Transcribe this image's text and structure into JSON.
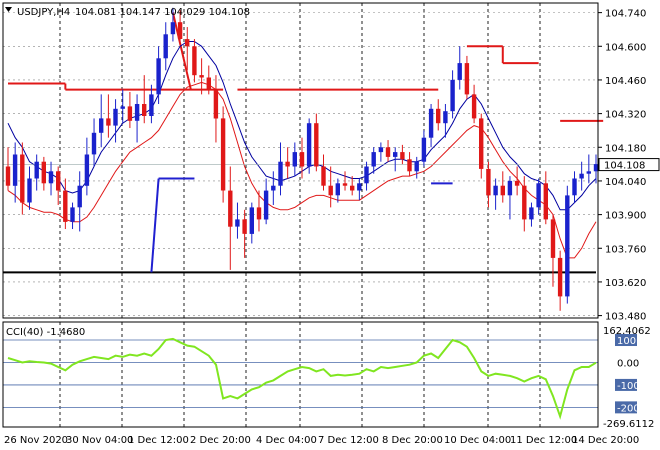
{
  "header": {
    "symbol": "USDJPY,H4",
    "quote": "104.081 104.147 104.029 104.108"
  },
  "price_panel": {
    "current_price": "104.108",
    "y_ticks": [
      "104.740",
      "104.600",
      "104.460",
      "104.320",
      "104.180",
      "104.040",
      "103.900",
      "103.760",
      "103.620",
      "103.480"
    ]
  },
  "cci_panel": {
    "title": "CCI(40) -1.4680",
    "scale_high": "162.4062",
    "scale_low": "-269.6112",
    "levels": [
      "100",
      "0.00",
      "-100",
      "-200"
    ]
  },
  "x_labels": [
    "26 Nov 2020",
    "30 Nov 04:00",
    "1 Dec 12:00",
    "2 Dec 20:00",
    "4 Dec 04:00",
    "7 Dec 12:00",
    "8 Dec 20:00",
    "10 Dec 04:00",
    "11 Dec 12:00",
    "14 Dec 20:00"
  ],
  "colors": {
    "bull": "#1a22cc",
    "bear": "#e01818",
    "cci": "#80e620",
    "ma_fast": "#0000a0",
    "ma_slow": "#e01818",
    "stop": "#e01818",
    "stop_bull": "#2020d0"
  },
  "chart_data": {
    "type": "candlestick",
    "symbol": "USDJPY",
    "timeframe": "H4",
    "ylim": [
      103.47,
      104.78
    ],
    "ohlc": [
      [
        104.1,
        104.18,
        104.0,
        104.02
      ],
      [
        104.02,
        104.2,
        103.95,
        104.15
      ],
      [
        104.15,
        104.2,
        103.9,
        103.95
      ],
      [
        103.95,
        104.1,
        103.92,
        104.05
      ],
      [
        104.05,
        104.15,
        104.0,
        104.12
      ],
      [
        104.12,
        104.14,
        104.0,
        104.03
      ],
      [
        104.03,
        104.12,
        103.98,
        104.08
      ],
      [
        104.08,
        104.1,
        103.94,
        104.0
      ],
      [
        104.0,
        104.05,
        103.84,
        103.87
      ],
      [
        103.87,
        103.95,
        103.84,
        103.93
      ],
      [
        103.93,
        104.08,
        103.83,
        104.02
      ],
      [
        104.02,
        104.22,
        103.98,
        104.15
      ],
      [
        104.15,
        104.3,
        104.1,
        104.24
      ],
      [
        104.24,
        104.4,
        104.18,
        104.3
      ],
      [
        104.3,
        104.4,
        104.22,
        104.27
      ],
      [
        104.27,
        104.38,
        104.2,
        104.34
      ],
      [
        104.34,
        104.42,
        104.28,
        104.35
      ],
      [
        104.35,
        104.41,
        104.26,
        104.29
      ],
      [
        104.29,
        104.4,
        104.2,
        104.36
      ],
      [
        104.36,
        104.48,
        104.28,
        104.31
      ],
      [
        104.31,
        104.44,
        104.28,
        104.4
      ],
      [
        104.4,
        104.6,
        104.36,
        104.55
      ],
      [
        104.55,
        104.7,
        104.5,
        104.65
      ],
      [
        104.65,
        104.76,
        104.62,
        104.7
      ],
      [
        104.7,
        104.75,
        104.62,
        104.63
      ],
      [
        104.63,
        104.68,
        104.5,
        104.6
      ],
      [
        104.6,
        104.63,
        104.45,
        104.48
      ],
      [
        104.48,
        104.55,
        104.4,
        104.47
      ],
      [
        104.47,
        104.52,
        104.4,
        104.42
      ],
      [
        104.42,
        104.48,
        104.2,
        104.3
      ],
      [
        104.3,
        104.35,
        103.95,
        104.0
      ],
      [
        104.0,
        104.1,
        103.67,
        103.85
      ],
      [
        103.85,
        103.95,
        103.8,
        103.88
      ],
      [
        103.88,
        103.92,
        103.72,
        103.82
      ],
      [
        103.82,
        103.95,
        103.78,
        103.93
      ],
      [
        103.93,
        104.0,
        103.83,
        103.88
      ],
      [
        103.88,
        104.05,
        103.86,
        104.0
      ],
      [
        104.0,
        104.08,
        103.94,
        104.02
      ],
      [
        104.02,
        104.2,
        103.98,
        104.12
      ],
      [
        104.12,
        104.18,
        104.05,
        104.1
      ],
      [
        104.1,
        104.2,
        104.06,
        104.16
      ],
      [
        104.16,
        104.22,
        104.05,
        104.1
      ],
      [
        104.1,
        104.3,
        104.07,
        104.28
      ],
      [
        104.28,
        104.32,
        104.08,
        104.1
      ],
      [
        104.1,
        104.15,
        104.0,
        104.02
      ],
      [
        104.02,
        104.1,
        103.93,
        103.98
      ],
      [
        103.98,
        104.05,
        103.95,
        104.03
      ],
      [
        104.03,
        104.08,
        104.0,
        104.02
      ],
      [
        104.02,
        104.06,
        103.98,
        104.0
      ],
      [
        104.0,
        104.05,
        103.96,
        104.03
      ],
      [
        104.03,
        104.12,
        104.0,
        104.1
      ],
      [
        104.1,
        104.18,
        104.07,
        104.16
      ],
      [
        104.16,
        104.2,
        104.12,
        104.18
      ],
      [
        104.18,
        104.21,
        104.12,
        104.14
      ],
      [
        104.14,
        104.18,
        104.08,
        104.16
      ],
      [
        104.16,
        104.19,
        104.11,
        104.13
      ],
      [
        104.13,
        104.16,
        104.06,
        104.08
      ],
      [
        104.08,
        104.14,
        104.05,
        104.12
      ],
      [
        104.12,
        104.25,
        104.1,
        104.22
      ],
      [
        104.22,
        104.36,
        104.18,
        104.34
      ],
      [
        104.34,
        104.38,
        104.25,
        104.28
      ],
      [
        104.28,
        104.36,
        104.22,
        104.33
      ],
      [
        104.33,
        104.5,
        104.3,
        104.46
      ],
      [
        104.46,
        104.6,
        104.42,
        104.53
      ],
      [
        104.53,
        104.56,
        104.38,
        104.4
      ],
      [
        104.4,
        104.44,
        104.28,
        104.3
      ],
      [
        104.3,
        104.32,
        104.05,
        104.09
      ],
      [
        104.09,
        104.12,
        103.93,
        103.98
      ],
      [
        103.98,
        104.05,
        103.92,
        104.02
      ],
      [
        104.02,
        104.08,
        103.95,
        103.98
      ],
      [
        103.98,
        104.06,
        103.88,
        104.04
      ],
      [
        104.04,
        104.1,
        103.98,
        104.02
      ],
      [
        104.02,
        104.06,
        103.83,
        103.88
      ],
      [
        103.88,
        103.95,
        103.85,
        103.93
      ],
      [
        103.93,
        104.05,
        103.9,
        104.03
      ],
      [
        104.03,
        104.08,
        103.86,
        103.88
      ],
      [
        103.88,
        103.9,
        103.6,
        103.72
      ],
      [
        103.72,
        103.75,
        103.5,
        103.56
      ],
      [
        103.56,
        104.02,
        103.53,
        103.98
      ],
      [
        103.98,
        104.08,
        103.95,
        104.05
      ],
      [
        104.05,
        104.12,
        104.0,
        104.07
      ],
      [
        104.07,
        104.15,
        104.03,
        104.08
      ],
      [
        104.08,
        104.15,
        104.03,
        104.11
      ]
    ],
    "ma_fast": [
      104.28,
      104.22,
      104.18,
      104.12,
      104.1,
      104.08,
      104.07,
      104.05,
      104.0,
      103.99,
      104.0,
      104.04,
      104.1,
      104.16,
      104.2,
      104.24,
      104.28,
      104.3,
      104.31,
      104.32,
      104.34,
      104.4,
      104.48,
      104.55,
      104.6,
      104.62,
      104.62,
      104.6,
      104.56,
      104.52,
      104.45,
      104.36,
      104.28,
      104.2,
      104.14,
      104.1,
      104.06,
      104.05,
      104.04,
      104.05,
      104.06,
      104.08,
      104.1,
      104.11,
      104.1,
      104.08,
      104.07,
      104.06,
      104.05,
      104.05,
      104.06,
      104.08,
      104.1,
      104.12,
      104.13,
      104.13,
      104.12,
      104.12,
      104.13,
      104.17,
      104.2,
      104.23,
      104.28,
      104.34,
      104.38,
      104.4,
      104.36,
      104.3,
      104.24,
      104.18,
      104.14,
      104.11,
      104.07,
      104.05,
      104.04,
      104.02,
      103.98,
      103.92,
      103.92,
      103.95,
      103.98,
      104.02,
      104.05
    ],
    "ma_slow": [
      104.0,
      103.98,
      103.95,
      103.93,
      103.92,
      103.91,
      103.91,
      103.9,
      103.88,
      103.87,
      103.87,
      103.89,
      103.93,
      103.98,
      104.03,
      104.08,
      104.12,
      104.16,
      104.18,
      104.2,
      104.22,
      104.25,
      104.3,
      104.35,
      104.4,
      104.43,
      104.44,
      104.45,
      104.44,
      104.42,
      104.38,
      104.3,
      104.2,
      104.1,
      104.03,
      103.98,
      103.95,
      103.93,
      103.92,
      103.92,
      103.93,
      103.95,
      103.97,
      103.98,
      103.98,
      103.97,
      103.96,
      103.96,
      103.96,
      103.96,
      103.98,
      104.0,
      104.02,
      104.04,
      104.05,
      104.06,
      104.06,
      104.07,
      104.08,
      104.1,
      104.13,
      104.16,
      104.19,
      104.22,
      104.25,
      104.27,
      104.26,
      104.22,
      104.17,
      104.12,
      104.08,
      104.05,
      104.01,
      103.98,
      103.96,
      103.94,
      103.9,
      103.8,
      103.72,
      103.72,
      103.76,
      103.82,
      103.87
    ],
    "stop_segments": [
      {
        "side": "above",
        "from": 0,
        "to": 8,
        "value": 104.445
      },
      {
        "side": "above",
        "from": 8,
        "to": 30,
        "value": 104.42
      },
      {
        "side": "above",
        "from": 32,
        "to": 60,
        "value": 104.42
      },
      {
        "side": "above",
        "from": 64,
        "to": 69,
        "value": 104.6
      },
      {
        "side": "above",
        "from": 69,
        "to": 74,
        "value": 104.53
      },
      {
        "side": "above",
        "from": 77,
        "to": 83,
        "value": 104.29
      },
      {
        "side": "below",
        "from": 21,
        "to": 26,
        "value": 104.05
      },
      {
        "side": "below",
        "from": 59,
        "to": 62,
        "value": 104.03
      }
    ],
    "support_line": 103.66,
    "cci": [
      20,
      10,
      0,
      5,
      2,
      0,
      -5,
      -20,
      -35,
      -10,
      5,
      15,
      25,
      20,
      15,
      30,
      25,
      35,
      30,
      40,
      30,
      60,
      100,
      105,
      90,
      75,
      70,
      50,
      30,
      -10,
      -160,
      -150,
      -160,
      -140,
      -120,
      -110,
      -90,
      -80,
      -60,
      -40,
      -30,
      -20,
      -25,
      -40,
      -30,
      -60,
      -55,
      -58,
      -55,
      -50,
      -30,
      -40,
      -20,
      -25,
      -20,
      -15,
      -10,
      0,
      30,
      40,
      20,
      60,
      100,
      90,
      70,
      20,
      -40,
      -60,
      -50,
      -55,
      -60,
      -70,
      -85,
      -70,
      -60,
      -75,
      -150,
      -240,
      -120,
      -35,
      -20,
      -20,
      -1
    ]
  }
}
